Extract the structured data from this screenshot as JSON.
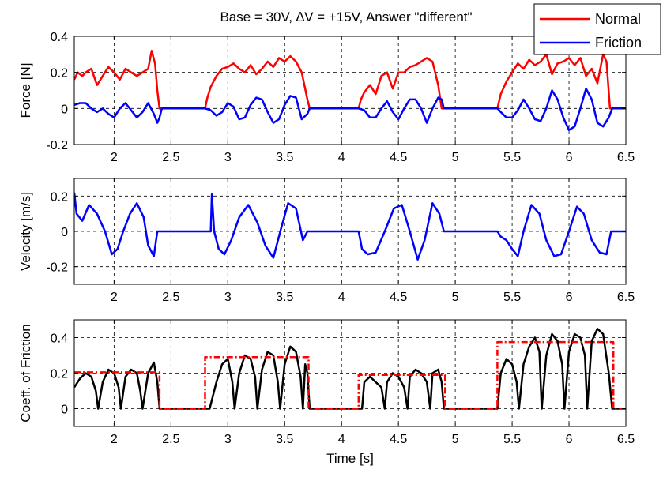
{
  "title": "Base = 30V, ∆V = +15V, Answer \"different\"",
  "chart_data": [
    {
      "type": "line",
      "ylabel": "Force [N]",
      "xlabel": "",
      "xlim": [
        1.65,
        6.5
      ],
      "ylim": [
        -0.2,
        0.4
      ],
      "xticks": [
        "2",
        "2.5",
        "3",
        "3.5",
        "4",
        "4.5",
        "5",
        "5.5",
        "6",
        "6.5"
      ],
      "xtick_values": [
        2,
        2.5,
        3,
        3.5,
        4,
        4.5,
        5,
        5.5,
        6,
        6.5
      ],
      "yticks": [
        "-0.2",
        "0",
        "0.2",
        "0.4"
      ],
      "ytick_values": [
        -0.2,
        0,
        0.2,
        0.4
      ],
      "grid": true,
      "legend": {
        "placement": "top-right",
        "entries": [
          "Normal",
          "Friction"
        ]
      },
      "series": [
        {
          "name": "Normal",
          "color": "#ff0000",
          "style": "solid",
          "x": [
            1.65,
            1.68,
            1.72,
            1.75,
            1.8,
            1.85,
            1.9,
            1.95,
            2.0,
            2.05,
            2.1,
            2.15,
            2.2,
            2.25,
            2.3,
            2.33,
            2.36,
            2.38,
            2.4,
            2.42,
            2.8,
            2.82,
            2.85,
            2.9,
            2.95,
            3.0,
            3.05,
            3.1,
            3.15,
            3.2,
            3.25,
            3.3,
            3.35,
            3.4,
            3.45,
            3.5,
            3.55,
            3.6,
            3.65,
            3.7,
            3.72,
            4.15,
            4.17,
            4.2,
            4.25,
            4.3,
            4.35,
            4.4,
            4.45,
            4.5,
            4.55,
            4.6,
            4.65,
            4.7,
            4.75,
            4.8,
            4.85,
            4.88,
            4.9,
            4.92,
            5.37,
            5.4,
            5.45,
            5.5,
            5.55,
            5.6,
            5.65,
            5.7,
            5.75,
            5.8,
            5.85,
            5.9,
            5.95,
            6.0,
            6.05,
            6.1,
            6.15,
            6.2,
            6.25,
            6.3,
            6.33,
            6.36,
            6.38,
            6.4,
            6.45,
            6.5
          ],
          "y": [
            0.16,
            0.2,
            0.18,
            0.2,
            0.22,
            0.13,
            0.18,
            0.23,
            0.2,
            0.16,
            0.22,
            0.2,
            0.18,
            0.2,
            0.22,
            0.32,
            0.25,
            0.1,
            0.0,
            0.0,
            0.0,
            0.06,
            0.12,
            0.18,
            0.22,
            0.23,
            0.25,
            0.22,
            0.2,
            0.24,
            0.19,
            0.22,
            0.26,
            0.23,
            0.28,
            0.26,
            0.29,
            0.26,
            0.2,
            0.05,
            0.0,
            0.0,
            0.05,
            0.09,
            0.13,
            0.08,
            0.18,
            0.2,
            0.11,
            0.2,
            0.2,
            0.23,
            0.24,
            0.26,
            0.28,
            0.26,
            0.13,
            0.0,
            0.0,
            0.0,
            0.0,
            0.08,
            0.15,
            0.2,
            0.25,
            0.22,
            0.27,
            0.24,
            0.26,
            0.3,
            0.19,
            0.25,
            0.26,
            0.28,
            0.24,
            0.28,
            0.18,
            0.22,
            0.14,
            0.3,
            0.26,
            0.0,
            0.0,
            0.0,
            0.0,
            0.0
          ]
        },
        {
          "name": "Friction",
          "color": "#0000ff",
          "style": "solid",
          "x": [
            1.65,
            1.7,
            1.75,
            1.8,
            1.85,
            1.9,
            1.95,
            2.0,
            2.05,
            2.1,
            2.15,
            2.2,
            2.25,
            2.3,
            2.35,
            2.38,
            2.4,
            2.42,
            2.8,
            2.85,
            2.9,
            2.95,
            3.0,
            3.05,
            3.1,
            3.15,
            3.2,
            3.25,
            3.3,
            3.35,
            3.4,
            3.45,
            3.5,
            3.55,
            3.6,
            3.65,
            3.7,
            3.72,
            4.15,
            4.2,
            4.25,
            4.3,
            4.35,
            4.4,
            4.45,
            4.5,
            4.55,
            4.6,
            4.65,
            4.7,
            4.75,
            4.8,
            4.85,
            4.88,
            4.9,
            4.92,
            5.37,
            5.4,
            5.45,
            5.5,
            5.55,
            5.6,
            5.65,
            5.7,
            5.75,
            5.8,
            5.85,
            5.9,
            5.95,
            6.0,
            6.05,
            6.1,
            6.15,
            6.2,
            6.25,
            6.3,
            6.35,
            6.38,
            6.4,
            6.45,
            6.5
          ],
          "y": [
            0.02,
            0.03,
            0.03,
            0.0,
            -0.02,
            0.0,
            -0.03,
            -0.05,
            0.0,
            0.03,
            -0.01,
            -0.05,
            -0.02,
            0.03,
            -0.03,
            -0.08,
            -0.05,
            0.0,
            0.0,
            -0.01,
            -0.04,
            -0.02,
            0.03,
            0.01,
            -0.06,
            -0.05,
            0.02,
            0.06,
            0.05,
            -0.02,
            -0.08,
            -0.06,
            0.02,
            0.07,
            0.06,
            -0.06,
            -0.03,
            0.0,
            0.0,
            -0.01,
            -0.05,
            -0.05,
            0.0,
            0.04,
            -0.02,
            -0.06,
            0.0,
            0.05,
            0.05,
            0.0,
            -0.08,
            0.0,
            0.06,
            0.05,
            0.0,
            0.0,
            0.0,
            -0.02,
            -0.05,
            -0.05,
            -0.01,
            0.05,
            0.0,
            -0.06,
            -0.07,
            0.0,
            0.1,
            0.05,
            -0.05,
            -0.12,
            -0.1,
            0.0,
            0.11,
            0.05,
            -0.08,
            -0.1,
            -0.05,
            0.0,
            0.0,
            0.0,
            0.0
          ]
        }
      ]
    },
    {
      "type": "line",
      "ylabel": "Velocity [m/s]",
      "xlabel": "",
      "xlim": [
        1.65,
        6.5
      ],
      "ylim": [
        -0.3,
        0.3
      ],
      "xticks": [
        "2",
        "2.5",
        "3",
        "3.5",
        "4",
        "4.5",
        "5",
        "5.5",
        "6",
        "6.5"
      ],
      "xtick_values": [
        2,
        2.5,
        3,
        3.5,
        4,
        4.5,
        5,
        5.5,
        6,
        6.5
      ],
      "yticks": [
        "-0.2",
        "0",
        "0.2"
      ],
      "ytick_values": [
        -0.2,
        0,
        0.2
      ],
      "grid": true,
      "series": [
        {
          "color": "#0000ff",
          "style": "solid",
          "x": [
            1.65,
            1.67,
            1.72,
            1.78,
            1.85,
            1.92,
            1.98,
            2.03,
            2.08,
            2.14,
            2.2,
            2.26,
            2.3,
            2.35,
            2.38,
            2.39,
            2.4,
            2.85,
            2.86,
            2.88,
            2.92,
            2.97,
            3.03,
            3.1,
            3.18,
            3.26,
            3.33,
            3.4,
            3.47,
            3.53,
            3.6,
            3.66,
            3.7,
            3.71,
            4.15,
            4.18,
            4.23,
            4.3,
            4.38,
            4.46,
            4.53,
            4.6,
            4.67,
            4.73,
            4.8,
            4.86,
            4.9,
            4.91,
            5.37,
            5.4,
            5.45,
            5.5,
            5.55,
            5.6,
            5.67,
            5.74,
            5.8,
            5.87,
            5.93,
            6.0,
            6.07,
            6.13,
            6.2,
            6.27,
            6.33,
            6.37,
            6.38,
            6.45,
            6.5
          ],
          "y": [
            0.22,
            0.1,
            0.06,
            0.15,
            0.1,
            0.0,
            -0.13,
            -0.1,
            0.0,
            0.1,
            0.16,
            0.08,
            -0.08,
            -0.14,
            0.0,
            0.0,
            0.0,
            0.0,
            0.21,
            0.0,
            -0.1,
            -0.13,
            -0.05,
            0.08,
            0.15,
            0.05,
            -0.08,
            -0.15,
            0.02,
            0.16,
            0.13,
            -0.05,
            0.0,
            0.0,
            0.0,
            -0.1,
            -0.13,
            -0.12,
            0.0,
            0.13,
            0.15,
            0.0,
            -0.16,
            -0.05,
            0.16,
            0.1,
            0.0,
            0.0,
            0.0,
            -0.03,
            -0.05,
            -0.1,
            -0.14,
            0.0,
            0.15,
            0.1,
            -0.05,
            -0.14,
            -0.13,
            0.0,
            0.14,
            0.1,
            -0.05,
            -0.12,
            -0.13,
            0.0,
            0.0,
            0.0,
            0.0
          ]
        }
      ]
    },
    {
      "type": "line",
      "ylabel": "Coeff. of Friction",
      "xlabel": "Time [s]",
      "xlim": [
        1.65,
        6.5
      ],
      "ylim": [
        -0.1,
        0.5
      ],
      "xticks": [
        "2",
        "2.5",
        "3",
        "3.5",
        "4",
        "4.5",
        "5",
        "5.5",
        "6",
        "6.5"
      ],
      "xtick_values": [
        2,
        2.5,
        3,
        3.5,
        4,
        4.5,
        5,
        5.5,
        6,
        6.5
      ],
      "yticks": [
        "0",
        "0.2",
        "0.4"
      ],
      "ytick_values": [
        0,
        0.2,
        0.4
      ],
      "grid": true,
      "series": [
        {
          "color": "#000000",
          "style": "solid",
          "x": [
            1.65,
            1.7,
            1.75,
            1.8,
            1.84,
            1.86,
            1.9,
            1.95,
            2.0,
            2.04,
            2.06,
            2.1,
            2.15,
            2.2,
            2.23,
            2.25,
            2.3,
            2.35,
            2.38,
            2.4,
            2.8,
            2.84,
            2.9,
            2.95,
            3.0,
            3.04,
            3.06,
            3.1,
            3.15,
            3.2,
            3.24,
            3.26,
            3.3,
            3.35,
            3.4,
            3.44,
            3.46,
            3.5,
            3.55,
            3.6,
            3.64,
            3.66,
            3.68,
            3.7,
            3.72,
            4.15,
            4.18,
            4.2,
            4.25,
            4.3,
            4.35,
            4.38,
            4.4,
            4.45,
            4.5,
            4.55,
            4.58,
            4.6,
            4.65,
            4.7,
            4.75,
            4.78,
            4.8,
            4.85,
            4.88,
            4.9,
            4.92,
            5.37,
            5.4,
            5.45,
            5.5,
            5.54,
            5.56,
            5.6,
            5.65,
            5.7,
            5.74,
            5.76,
            5.8,
            5.85,
            5.9,
            5.94,
            5.96,
            6.0,
            6.05,
            6.1,
            6.14,
            6.16,
            6.2,
            6.25,
            6.3,
            6.35,
            6.38,
            6.4,
            6.45,
            6.5
          ],
          "y": [
            0.12,
            0.17,
            0.2,
            0.18,
            0.1,
            0.0,
            0.15,
            0.22,
            0.2,
            0.12,
            0.0,
            0.18,
            0.22,
            0.2,
            0.1,
            0.0,
            0.2,
            0.26,
            0.15,
            0.0,
            0.0,
            0.0,
            0.15,
            0.25,
            0.28,
            0.15,
            0.0,
            0.2,
            0.3,
            0.28,
            0.18,
            0.0,
            0.22,
            0.32,
            0.3,
            0.15,
            0.0,
            0.25,
            0.35,
            0.32,
            0.18,
            0.0,
            0.25,
            0.2,
            0.0,
            0.0,
            0.0,
            0.15,
            0.18,
            0.15,
            0.12,
            0.0,
            0.15,
            0.2,
            0.18,
            0.12,
            0.0,
            0.18,
            0.22,
            0.2,
            0.15,
            0.0,
            0.2,
            0.22,
            0.15,
            0.0,
            0.0,
            0.0,
            0.2,
            0.28,
            0.25,
            0.15,
            0.0,
            0.25,
            0.35,
            0.4,
            0.32,
            0.0,
            0.3,
            0.42,
            0.38,
            0.25,
            0.0,
            0.32,
            0.42,
            0.4,
            0.3,
            0.0,
            0.38,
            0.45,
            0.42,
            0.2,
            0.0,
            0.0,
            0.0,
            0.0
          ]
        },
        {
          "color": "#ff0000",
          "style": "dashdot",
          "x": [
            1.65,
            2.4,
            2.4,
            2.8,
            2.8,
            3.71,
            3.71,
            4.15,
            4.15,
            4.91,
            4.91,
            5.37,
            5.37,
            6.39,
            6.39,
            6.5
          ],
          "y": [
            0.205,
            0.205,
            0.0,
            0.0,
            0.29,
            0.29,
            0.0,
            0.0,
            0.19,
            0.19,
            0.0,
            0.0,
            0.375,
            0.375,
            0.0,
            0.0
          ]
        }
      ]
    }
  ]
}
